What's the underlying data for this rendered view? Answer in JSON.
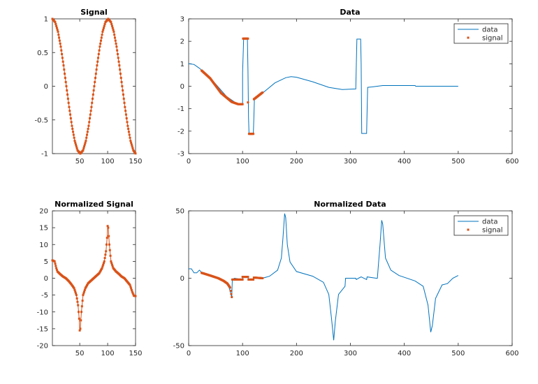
{
  "colors": {
    "data": "#0072BD",
    "signal": "#D95319",
    "axis": "#262626"
  },
  "chart_data": [
    {
      "type": "line",
      "title": "Signal",
      "xlim": [
        1,
        150
      ],
      "ylim": [
        -1,
        1
      ],
      "xticks": [
        50,
        100,
        150
      ],
      "yticks": [
        -1,
        -0.5,
        0,
        0.5,
        1
      ],
      "series": [
        {
          "name": "signal",
          "style": "line+markers",
          "color": "signal",
          "segments": [
            [
              [
                1,
                1
              ],
              [
                6,
                0.951
              ],
              [
                11,
                0.809
              ],
              [
                16,
                0.588
              ],
              [
                21,
                0.309
              ],
              [
                26,
                0
              ],
              [
                31,
                -0.309
              ],
              [
                36,
                -0.588
              ],
              [
                41,
                -0.809
              ],
              [
                46,
                -0.951
              ],
              [
                51,
                -1
              ],
              [
                56,
                -0.951
              ],
              [
                61,
                -0.809
              ],
              [
                66,
                -0.588
              ],
              [
                71,
                -0.309
              ],
              [
                76,
                0
              ],
              [
                81,
                0.309
              ],
              [
                86,
                0.588
              ],
              [
                91,
                0.809
              ],
              [
                96,
                0.951
              ],
              [
                101,
                1
              ],
              [
                106,
                0.951
              ],
              [
                111,
                0.809
              ],
              [
                116,
                0.588
              ],
              [
                121,
                0.309
              ],
              [
                126,
                0
              ],
              [
                131,
                -0.309
              ],
              [
                136,
                -0.588
              ],
              [
                141,
                -0.809
              ],
              [
                146,
                -0.951
              ],
              [
                150,
                -0.998
              ]
            ]
          ]
        }
      ]
    },
    {
      "type": "line",
      "title": "Data",
      "xlim": [
        0,
        600
      ],
      "ylim": [
        -3,
        3
      ],
      "xticks": [
        0,
        100,
        200,
        300,
        400,
        500,
        600
      ],
      "yticks": [
        -3,
        -2,
        -1,
        0,
        1,
        2,
        3
      ],
      "legend": {
        "location": "top-right",
        "entries": [
          "data",
          "signal"
        ]
      },
      "series": [
        {
          "name": "data",
          "style": "line",
          "color": "data",
          "segments": [
            [
              [
                0,
                1
              ],
              [
                10,
                0.97
              ],
              [
                20,
                0.8
              ],
              [
                30,
                0.6
              ],
              [
                50,
                0.1
              ],
              [
                70,
                -0.45
              ],
              [
                90,
                -0.78
              ],
              [
                100,
                -0.8
              ],
              [
                100,
                0.6
              ],
              [
                102,
                2.1
              ],
              [
                109,
                2.1
              ],
              [
                110,
                0.7
              ],
              [
                111,
                -1.4
              ],
              [
                112,
                -2.1
              ],
              [
                120,
                -2.1
              ],
              [
                121,
                -1.35
              ],
              [
                122,
                -0.6
              ],
              [
                130,
                -0.45
              ],
              [
                140,
                -0.25
              ],
              [
                160,
                0.15
              ],
              [
                180,
                0.38
              ],
              [
                190,
                0.43
              ],
              [
                200,
                0.4
              ],
              [
                230,
                0.2
              ],
              [
                260,
                -0.05
              ],
              [
                285,
                -0.15
              ],
              [
                310,
                -0.12
              ],
              [
                311,
                1.0
              ],
              [
                312,
                2.1
              ],
              [
                319,
                2.1
              ],
              [
                320,
                1.0
              ],
              [
                321,
                -2.1
              ],
              [
                330,
                -2.1
              ],
              [
                331,
                -1.1
              ],
              [
                332,
                -0.05
              ],
              [
                340,
                -0.03
              ],
              [
                360,
                0.03
              ],
              [
                420,
                0.03
              ],
              [
                421,
                0
              ],
              [
                500,
                0
              ]
            ]
          ]
        },
        {
          "name": "signal",
          "style": "markers",
          "color": "signal",
          "segments": [
            [
              [
                24,
                0.7
              ],
              [
                40,
                0.35
              ],
              [
                60,
                -0.3
              ],
              [
                80,
                -0.7
              ],
              [
                92,
                -0.8
              ],
              [
                100,
                -0.8
              ]
            ],
            [
              [
                101,
                2.12
              ],
              [
                110,
                2.12
              ]
            ],
            [
              [
                110,
                -0.72
              ],
              [
                110,
                -0.72
              ]
            ],
            [
              [
                112,
                -2.12
              ],
              [
                120,
                -2.12
              ]
            ],
            [
              [
                121,
                -0.58
              ],
              [
                137,
                -0.28
              ]
            ]
          ]
        }
      ]
    },
    {
      "type": "line",
      "title": "Normalized Signal",
      "xlim": [
        1,
        150
      ],
      "ylim": [
        -20,
        20
      ],
      "xticks": [
        50,
        100,
        150
      ],
      "yticks": [
        -20,
        -15,
        -10,
        -5,
        0,
        5,
        10,
        15,
        20
      ],
      "series": [
        {
          "name": "signal",
          "style": "line+markers",
          "color": "signal",
          "segments": [
            [
              [
                1,
                5.3
              ],
              [
                5,
                5
              ],
              [
                8,
                3
              ],
              [
                10,
                2
              ],
              [
                15,
                1.2
              ],
              [
                20,
                0.5
              ],
              [
                25,
                0
              ],
              [
                30,
                -0.8
              ],
              [
                35,
                -1.8
              ],
              [
                40,
                -3
              ],
              [
                44,
                -5
              ],
              [
                47,
                -8
              ],
              [
                49,
                -12
              ],
              [
                50,
                -15.5
              ],
              [
                51,
                -15
              ],
              [
                53,
                -10
              ],
              [
                56,
                -5
              ],
              [
                60,
                -3
              ],
              [
                65,
                -1.5
              ],
              [
                75,
                0
              ],
              [
                85,
                1.5
              ],
              [
                90,
                3
              ],
              [
                94,
                5
              ],
              [
                97,
                8
              ],
              [
                99,
                12
              ],
              [
                100,
                15.5
              ],
              [
                101,
                15
              ],
              [
                103,
                10
              ],
              [
                106,
                5
              ],
              [
                110,
                3
              ],
              [
                115,
                2
              ],
              [
                120,
                1.3
              ],
              [
                125,
                0.5
              ],
              [
                130,
                0
              ],
              [
                135,
                -1
              ],
              [
                140,
                -2
              ],
              [
                144,
                -4
              ],
              [
                147,
                -5.2
              ],
              [
                150,
                -5.3
              ]
            ]
          ]
        }
      ]
    },
    {
      "type": "line",
      "title": "Normalized Data",
      "xlim": [
        0,
        600
      ],
      "ylim": [
        -50,
        50
      ],
      "xticks": [
        0,
        100,
        200,
        300,
        400,
        500,
        600
      ],
      "yticks": [
        -50,
        0,
        50
      ],
      "legend": {
        "location": "top-right",
        "entries": [
          "data",
          "signal"
        ]
      },
      "series": [
        {
          "name": "data",
          "style": "line",
          "color": "data",
          "segments": [
            [
              [
                0,
                7
              ],
              [
                5,
                7
              ],
              [
                10,
                4
              ],
              [
                15,
                4
              ],
              [
                20,
                6
              ],
              [
                25,
                4
              ],
              [
                40,
                2
              ],
              [
                60,
                -1
              ],
              [
                70,
                -4
              ],
              [
                75,
                -7
              ],
              [
                80,
                -14
              ],
              [
                81,
                -1
              ],
              [
                85,
                0
              ],
              [
                100,
                -1
              ],
              [
                101,
                1
              ],
              [
                110,
                1
              ],
              [
                111,
                -1
              ],
              [
                120,
                -1
              ],
              [
                121,
                0.5
              ],
              [
                137,
                0
              ],
              [
                150,
                1.5
              ],
              [
                165,
                6
              ],
              [
                172,
                15
              ],
              [
                175,
                30
              ],
              [
                178,
                48
              ],
              [
                180,
                45
              ],
              [
                183,
                25
              ],
              [
                188,
                12
              ],
              [
                200,
                5
              ],
              [
                230,
                1.5
              ],
              [
                250,
                -3
              ],
              [
                260,
                -12
              ],
              [
                265,
                -30
              ],
              [
                269,
                -46
              ],
              [
                272,
                -32
              ],
              [
                278,
                -12
              ],
              [
                290,
                -6
              ],
              [
                291,
                0
              ],
              [
                310,
                0
              ],
              [
                311,
                -1
              ],
              [
                315,
                0
              ],
              [
                320,
                1
              ],
              [
                330,
                -1
              ],
              [
                331,
                1
              ],
              [
                348,
                0
              ],
              [
                350,
                0
              ],
              [
                352,
                10
              ],
              [
                355,
                25
              ],
              [
                358,
                43
              ],
              [
                360,
                40
              ],
              [
                365,
                15
              ],
              [
                375,
                6
              ],
              [
                390,
                2
              ],
              [
                420,
                -2
              ],
              [
                435,
                -6
              ],
              [
                444,
                -20
              ],
              [
                449,
                -40
              ],
              [
                452,
                -35
              ],
              [
                458,
                -15
              ],
              [
                470,
                -5
              ],
              [
                480,
                -4
              ],
              [
                490,
                0
              ],
              [
                500,
                2
              ]
            ]
          ]
        },
        {
          "name": "signal",
          "style": "markers",
          "color": "signal",
          "segments": [
            [
              [
                24,
                4
              ],
              [
                40,
                2
              ],
              [
                55,
                0
              ],
              [
                65,
                -2
              ],
              [
                72,
                -4
              ],
              [
                77,
                -7
              ],
              [
                80,
                -14
              ]
            ],
            [
              [
                81,
                -1
              ],
              [
                100,
                -1
              ]
            ],
            [
              [
                100,
                1
              ],
              [
                110,
                1
              ]
            ],
            [
              [
                111,
                -1
              ],
              [
                120,
                -1
              ]
            ],
            [
              [
                121,
                0.5
              ],
              [
                137,
                0
              ]
            ]
          ]
        }
      ]
    }
  ]
}
